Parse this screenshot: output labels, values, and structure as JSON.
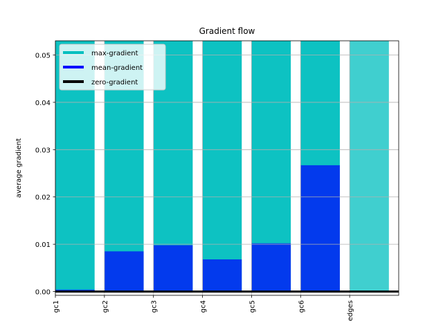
{
  "chart_data": {
    "type": "bar",
    "title": "Gradient flow",
    "xlabel": "",
    "ylabel": "average gradient",
    "ylim": [
      -0.0008,
      0.053
    ],
    "xlim": [
      0,
      7
    ],
    "grid": true,
    "categories": [
      "gc1",
      "gc2",
      "gc3",
      "gc4",
      "gc5",
      "gc6",
      "edges"
    ],
    "y_ticks": [
      0.0,
      0.01,
      0.02,
      0.03,
      0.04,
      0.05
    ],
    "y_tick_labels": [
      "0.00",
      "0.01",
      "0.02",
      "0.03",
      "0.04",
      "0.05"
    ],
    "series": [
      {
        "name": "max-gradient",
        "color": "#00bfbf",
        "values": [
          0.053,
          0.053,
          0.053,
          0.053,
          0.053,
          0.053,
          0.053
        ]
      },
      {
        "name": "mean-gradient",
        "color": "#0000ff",
        "values": [
          0.0004,
          0.0085,
          0.0098,
          0.0068,
          0.0102,
          0.0267,
          0.0
        ]
      }
    ],
    "zero_line": {
      "name": "zero-gradient",
      "value": 0.0,
      "color": "#000000"
    },
    "legend": {
      "placement": "top-left",
      "entries": [
        "max-gradient",
        "mean-gradient",
        "zero-gradient"
      ],
      "colors": [
        "#00bfbf",
        "#0000ff",
        "#000000"
      ]
    }
  }
}
